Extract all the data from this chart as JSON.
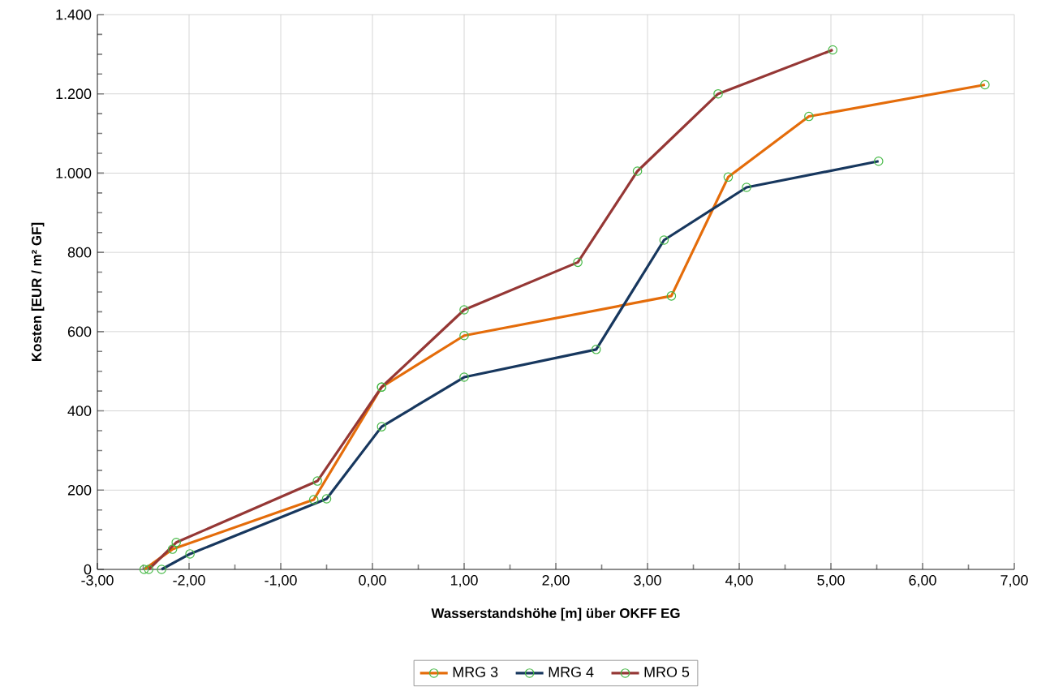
{
  "chart_data": {
    "type": "line",
    "xlabel": "Wasserstandshöhe [m] über OKFF EG",
    "ylabel": "Kosten [EUR / m² GF]",
    "xlim": [
      -3,
      7
    ],
    "ylim": [
      0,
      1400
    ],
    "xticks": [
      {
        "value": -3,
        "label": "-3,00"
      },
      {
        "value": -2,
        "label": "-2,00"
      },
      {
        "value": -1,
        "label": "-1,00"
      },
      {
        "value": 0,
        "label": "0,00"
      },
      {
        "value": 1,
        "label": "1,00"
      },
      {
        "value": 2,
        "label": "2,00"
      },
      {
        "value": 3,
        "label": "3,00"
      },
      {
        "value": 4,
        "label": "4,00"
      },
      {
        "value": 5,
        "label": "5,00"
      },
      {
        "value": 6,
        "label": "6,00"
      },
      {
        "value": 7,
        "label": "7,00"
      }
    ],
    "yticks": [
      0,
      200,
      400,
      600,
      800,
      {
        "value": 1000,
        "label": "1.000"
      },
      {
        "value": 1200,
        "label": "1.200"
      },
      {
        "value": 1400,
        "label": "1.400"
      }
    ],
    "grid": true,
    "legend": "bottom",
    "marker": "circle",
    "line_style": "solid",
    "series": [
      {
        "name": "MRG 3",
        "color": "#e46c0a",
        "x": [
          -2.49,
          -2.18,
          -0.64,
          0.1,
          1.0,
          3.26,
          3.88,
          4.76,
          6.68
        ],
        "values": [
          0,
          51,
          176,
          460,
          590,
          690,
          990,
          1143,
          1223
        ]
      },
      {
        "name": "MRG 4",
        "color": "#17375e",
        "x": [
          -2.3,
          -1.99,
          -0.5,
          0.1,
          1.0,
          2.44,
          3.18,
          4.08,
          5.52
        ],
        "values": [
          0,
          39,
          178,
          360,
          485,
          555,
          831,
          964,
          1030
        ]
      },
      {
        "name": "MRO 5",
        "color": "#953735",
        "x": [
          -2.44,
          -2.14,
          -0.6,
          0.1,
          1.0,
          2.24,
          2.89,
          3.77,
          5.02
        ],
        "values": [
          0,
          68,
          223,
          460,
          655,
          775,
          1005,
          1200,
          1311
        ]
      }
    ]
  }
}
